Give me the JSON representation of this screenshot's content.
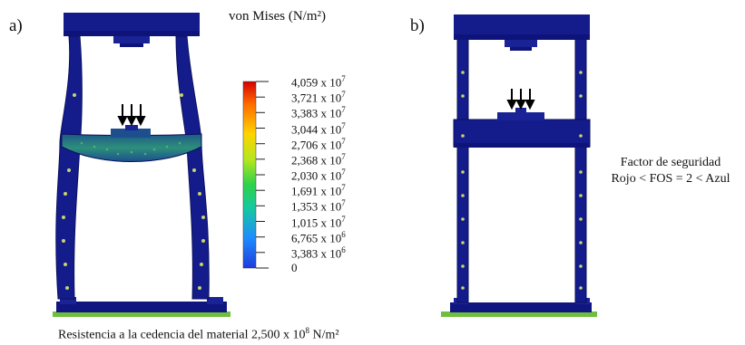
{
  "panels": {
    "a": {
      "label": "a)"
    },
    "b": {
      "label": "b)"
    }
  },
  "legend": {
    "title": "von Mises (N/m²)",
    "ticks": [
      {
        "mantissa": "4,059 x 10",
        "exp": "7"
      },
      {
        "mantissa": "3,721 x 10",
        "exp": "7"
      },
      {
        "mantissa": "3,383 x 10",
        "exp": "7"
      },
      {
        "mantissa": "3,044 x 10",
        "exp": "7"
      },
      {
        "mantissa": "2,706 x 10",
        "exp": "7"
      },
      {
        "mantissa": "2,368 x 10",
        "exp": "7"
      },
      {
        "mantissa": "2,030 x 10",
        "exp": "7"
      },
      {
        "mantissa": "1,691 x 10",
        "exp": "7"
      },
      {
        "mantissa": "1,353 x 10",
        "exp": "7"
      },
      {
        "mantissa": "1,015 x 10",
        "exp": "7"
      },
      {
        "mantissa": "6,765 x 10",
        "exp": "6"
      },
      {
        "mantissa": "3,383 x 10",
        "exp": "6"
      },
      {
        "mantissa": "0",
        "exp": ""
      }
    ],
    "colors": [
      "#d40000",
      "#ff6a00",
      "#ffd400",
      "#b4e61e",
      "#2fd24a",
      "#16c8a0",
      "#1e8cff",
      "#1e3cdc"
    ]
  },
  "caption": {
    "yield_prefix": "Resistencia a la cedencia del material  2,500 x 10",
    "yield_exp": "8",
    "yield_unit": " N/m²"
  },
  "safety": {
    "title": "Factor de seguridad",
    "rule": "Rojo <  FOS = 2 < Azul"
  },
  "colors": {
    "frame_dark": "#0d1170",
    "frame_mid": "#1a2396",
    "frame_light": "#2a3bb8",
    "beam_stress": "#2d7f7a",
    "ground": "#6fbf3e"
  }
}
